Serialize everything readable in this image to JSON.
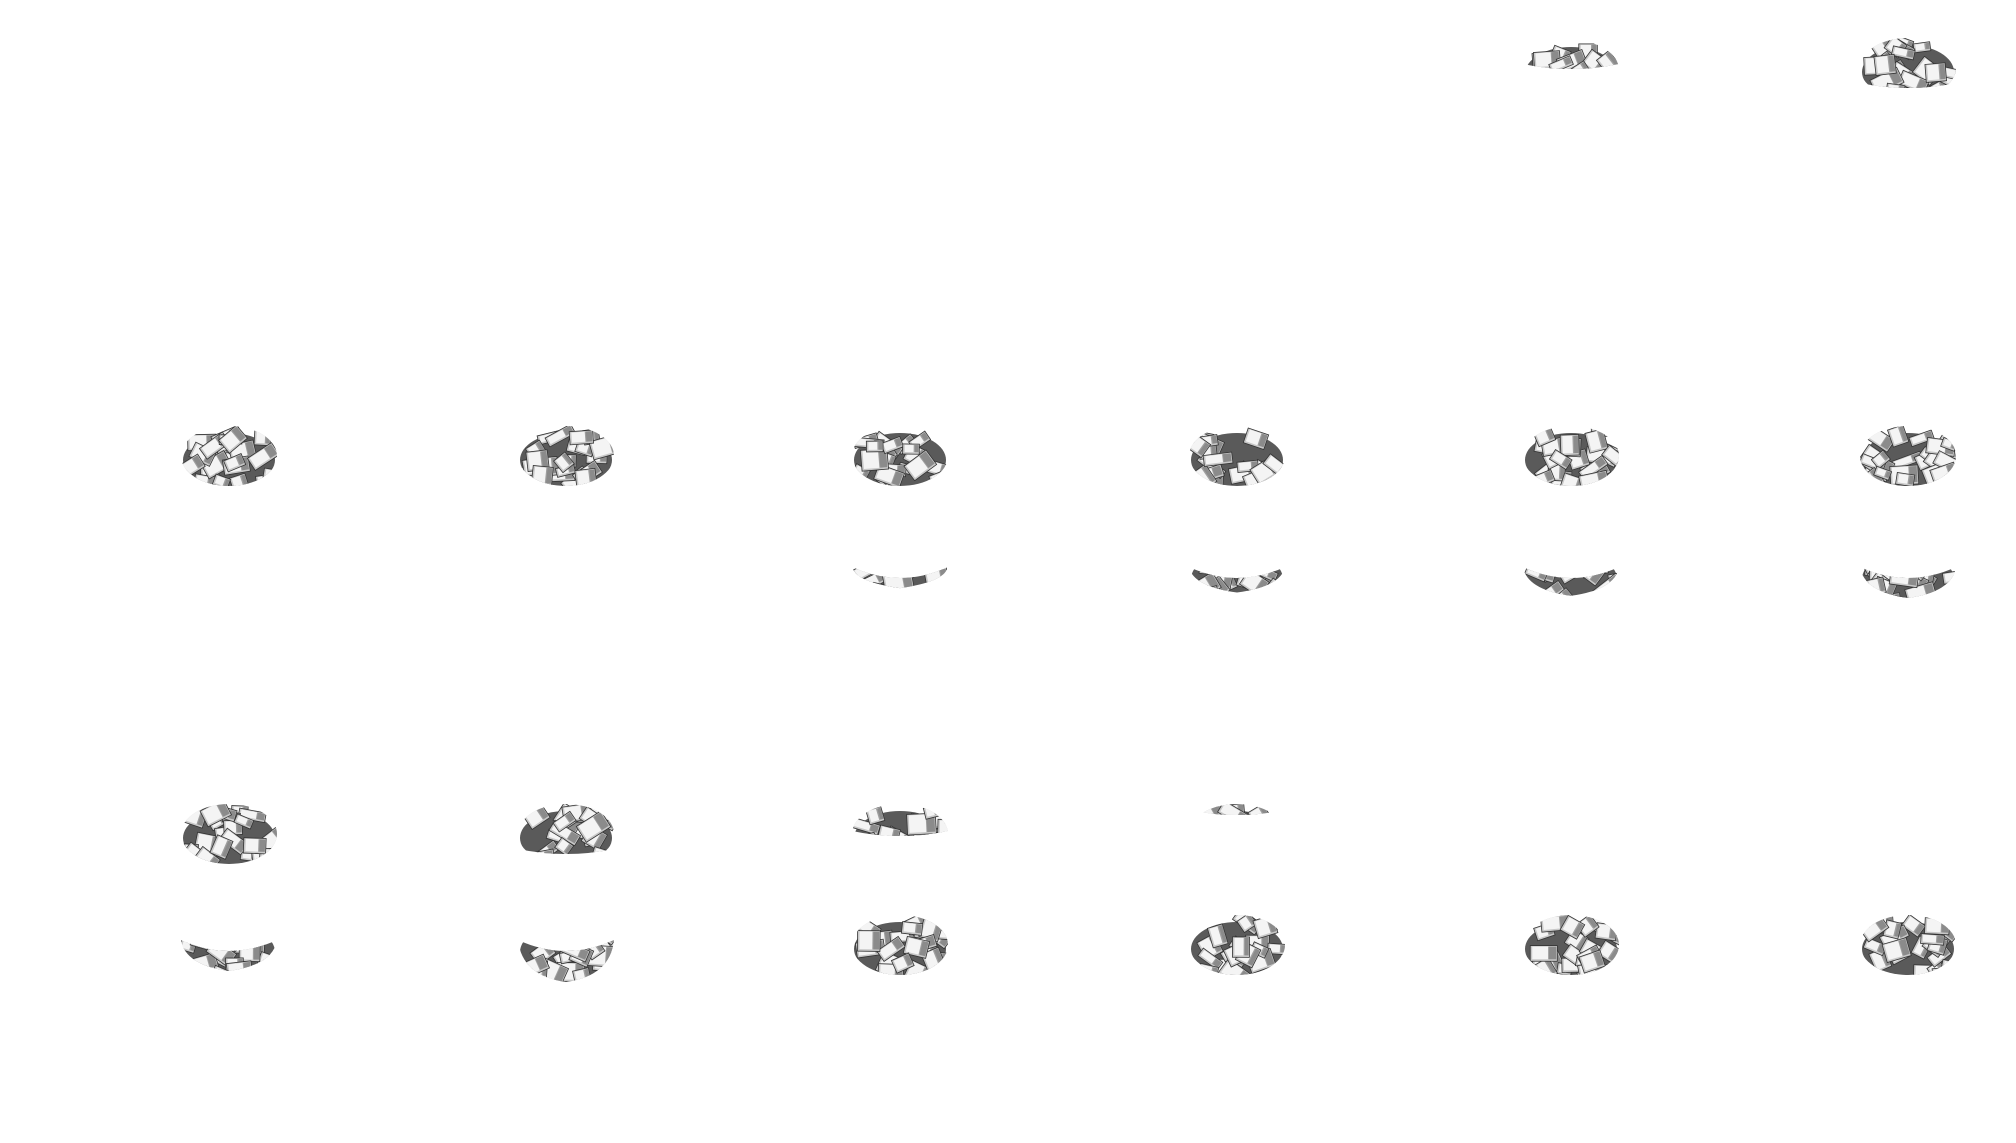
{
  "colors": {
    "background": "#ffffff",
    "face_light": "#f4f4f4",
    "face_mid": "#c8c8c8",
    "face_dark": "#5a5a5a",
    "outline": "#333333"
  }
}
